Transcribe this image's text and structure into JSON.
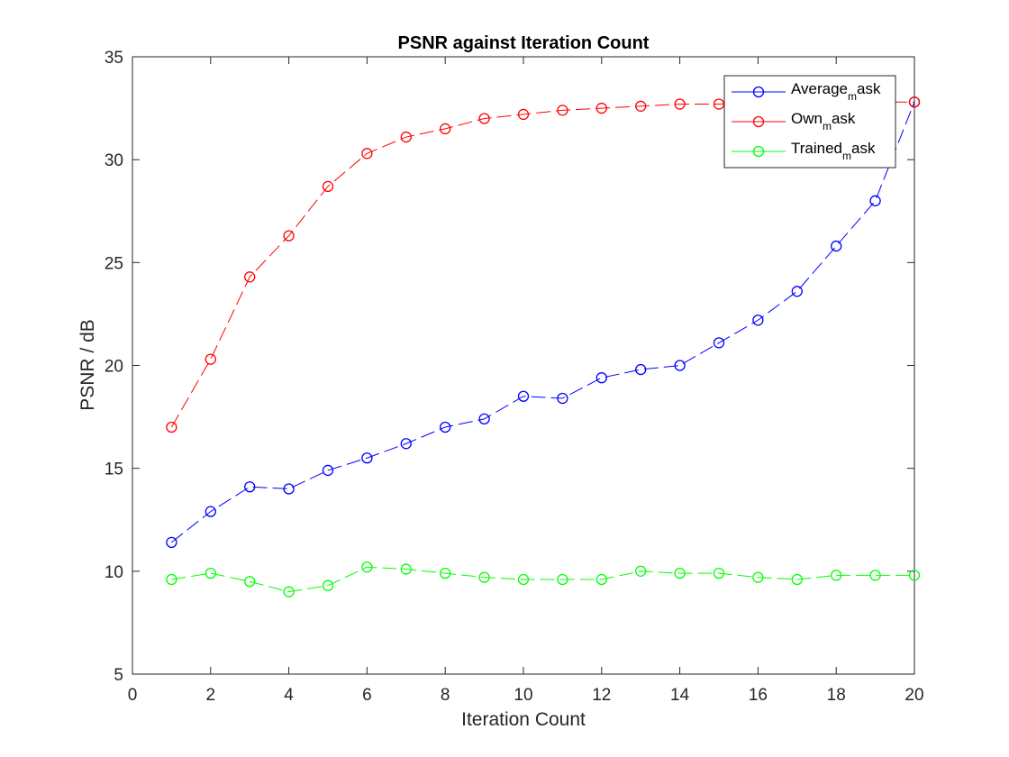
{
  "chart_data": {
    "type": "line",
    "title": "PSNR against Iteration Count",
    "xlabel": "Iteration Count",
    "ylabel": "PSNR / dB",
    "xlim": [
      0,
      20
    ],
    "ylim": [
      5,
      35
    ],
    "xticks": [
      0,
      2,
      4,
      6,
      8,
      10,
      12,
      14,
      16,
      18,
      20
    ],
    "yticks": [
      5,
      10,
      15,
      20,
      25,
      30,
      35
    ],
    "grid": false,
    "legend_position": "top-right",
    "x": [
      1,
      2,
      3,
      4,
      5,
      6,
      7,
      8,
      9,
      10,
      11,
      12,
      13,
      14,
      15,
      16,
      17,
      18,
      19,
      20
    ],
    "series": [
      {
        "name": "Average_mask",
        "legend_base": "Average",
        "legend_sub": "m",
        "legend_rest": "ask",
        "color": "#0000ff",
        "values": [
          11.4,
          12.9,
          14.1,
          14.0,
          14.9,
          15.5,
          16.2,
          17.0,
          17.4,
          18.5,
          18.4,
          19.4,
          19.8,
          20.0,
          21.1,
          22.2,
          23.6,
          25.8,
          28.0,
          32.8
        ]
      },
      {
        "name": "Own_mask",
        "legend_base": "Own",
        "legend_sub": "m",
        "legend_rest": "ask",
        "color": "#ff0000",
        "values": [
          17.0,
          20.3,
          24.3,
          26.3,
          28.7,
          30.3,
          31.1,
          31.5,
          32.0,
          32.2,
          32.4,
          32.5,
          32.6,
          32.7,
          32.7,
          32.8,
          32.8,
          32.8,
          32.8,
          32.8
        ]
      },
      {
        "name": "Trained_mask",
        "legend_base": "Trained",
        "legend_sub": "m",
        "legend_rest": "ask",
        "color": "#00ff00",
        "values": [
          9.6,
          9.9,
          9.5,
          9.0,
          9.3,
          10.2,
          10.1,
          9.9,
          9.7,
          9.6,
          9.6,
          9.6,
          10.0,
          9.9,
          9.9,
          9.7,
          9.6,
          9.8,
          9.8,
          9.8
        ]
      }
    ]
  }
}
